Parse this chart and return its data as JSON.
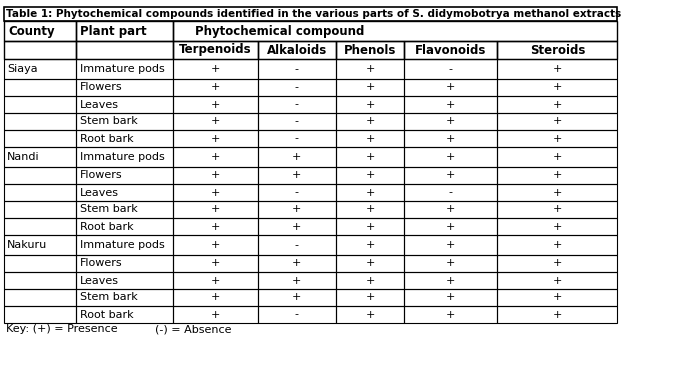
{
  "title": "Table 1: Phytochemical compounds identified in the various parts of S. didymobotrya methanol extracts",
  "col_headers_row1": [
    "County",
    "Plant part",
    "Phytochemical compound",
    "",
    "",
    "",
    ""
  ],
  "col_headers_row2": [
    "",
    "",
    "Terpenoids",
    "Alkaloids",
    "Phenols",
    "Flavonoids",
    "Steroids"
  ],
  "counties": [
    "Siaya",
    "Nandi",
    "Nakuru"
  ],
  "plant_parts": [
    "Immature pods",
    "Flowers",
    "Leaves",
    "Stem bark",
    "Root bark"
  ],
  "data": {
    "Siaya": {
      "Immature pods": [
        "+",
        "-",
        "+",
        "-",
        "+"
      ],
      "Flowers": [
        "+",
        "-",
        "+",
        "+",
        "+"
      ],
      "Leaves": [
        "+",
        "-",
        "+",
        "+",
        "+"
      ],
      "Stem bark": [
        "+",
        "-",
        "+",
        "+",
        "+"
      ],
      "Root bark": [
        "+",
        "-",
        "+",
        "+",
        "+"
      ]
    },
    "Nandi": {
      "Immature pods": [
        "+",
        "+",
        "+",
        "+",
        "+"
      ],
      "Flowers": [
        "+",
        "+",
        "+",
        "+",
        "+"
      ],
      "Leaves": [
        "+",
        "-",
        "+",
        "-",
        "+"
      ],
      "Stem bark": [
        "+",
        "+",
        "+",
        "+",
        "+"
      ],
      "Root bark": [
        "+",
        "+",
        "+",
        "+",
        "+"
      ]
    },
    "Nakuru": {
      "Immature pods": [
        "+",
        "-",
        "+",
        "+",
        "+"
      ],
      "Flowers": [
        "+",
        "+",
        "+",
        "+",
        "+"
      ],
      "Leaves": [
        "+",
        "+",
        "+",
        "+",
        "+"
      ],
      "Stem bark": [
        "+",
        "+",
        "+",
        "+",
        "+"
      ],
      "Root bark": [
        "+",
        "-",
        "+",
        "+",
        "+"
      ]
    }
  },
  "key_text": "Key: (+) = Presence                    (-) = Absence",
  "bg_color": "#ffffff",
  "header_bg": "#ffffff",
  "border_color": "#000000",
  "text_color": "#000000",
  "title_fontsize": 7.5,
  "header_fontsize": 8.5,
  "cell_fontsize": 8.0
}
